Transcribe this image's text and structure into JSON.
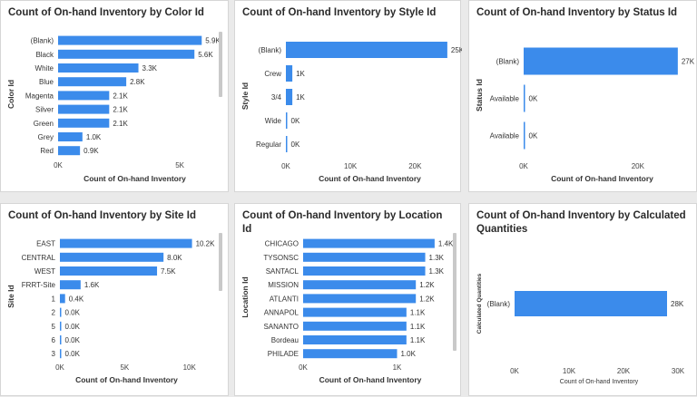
{
  "theme": {
    "bar_color": "#3b8beb",
    "background": "#eaeaea",
    "panel": "#ffffff"
  },
  "chart_data": [
    {
      "id": "color",
      "type": "bar",
      "orientation": "horizontal",
      "title": "Count of On-hand Inventory by Color Id",
      "xlabel": "Count of On-hand Inventory",
      "ylabel": "Color Id",
      "categories": [
        "(Blank)",
        "Black",
        "White",
        "Blue",
        "Magenta",
        "Silver",
        "Green",
        "Grey",
        "Red"
      ],
      "values": [
        5900,
        5600,
        3300,
        2800,
        2100,
        2100,
        2100,
        1000,
        900
      ],
      "labels": [
        "5.9K",
        "5.6K",
        "3.3K",
        "2.8K",
        "2.1K",
        "2.1K",
        "2.1K",
        "1.0K",
        "0.9K"
      ],
      "xticks": [
        0,
        5000
      ],
      "xtick_labels": [
        "0K",
        "5K"
      ],
      "xlim": [
        0,
        6300
      ],
      "scrollbar": true
    },
    {
      "id": "style",
      "type": "bar",
      "orientation": "horizontal",
      "title": "Count of On-hand Inventory by Style Id",
      "xlabel": "Count of On-hand Inventory",
      "ylabel": "Style Id",
      "categories": [
        "(Blank)",
        "Crew",
        "3/4",
        "Wide",
        "Regular"
      ],
      "values": [
        25000,
        1000,
        1000,
        0,
        0
      ],
      "labels": [
        "25K",
        "1K",
        "1K",
        "0K",
        "0K"
      ],
      "xticks": [
        0,
        10000,
        20000
      ],
      "xtick_labels": [
        "0K",
        "10K",
        "20K"
      ],
      "xlim": [
        0,
        26000
      ],
      "scrollbar": false
    },
    {
      "id": "status",
      "type": "bar",
      "orientation": "horizontal",
      "title": "Count of On-hand Inventory by Status Id",
      "xlabel": "Count of On-hand Inventory",
      "ylabel": "Status Id",
      "categories": [
        "(Blank)",
        "Available",
        "Available"
      ],
      "values": [
        27000,
        0,
        0
      ],
      "labels": [
        "27K",
        "0K",
        "0K"
      ],
      "xticks": [
        0,
        20000
      ],
      "xtick_labels": [
        "0K",
        "20K"
      ],
      "xlim": [
        0,
        27500
      ],
      "scrollbar": false
    },
    {
      "id": "site",
      "type": "bar",
      "orientation": "horizontal",
      "title": "Count of On-hand Inventory by Site Id",
      "xlabel": "Count of On-hand Inventory",
      "ylabel": "Site Id",
      "categories": [
        "EAST",
        "CENTRAL",
        "WEST",
        "FRRT-Site",
        "1",
        "2",
        "5",
        "6",
        "3"
      ],
      "values": [
        10200,
        8000,
        7500,
        1600,
        400,
        0,
        0,
        0,
        0
      ],
      "labels": [
        "10.2K",
        "8.0K",
        "7.5K",
        "1.6K",
        "0.4K",
        "0.0K",
        "0.0K",
        "0.0K",
        "0.0K"
      ],
      "xticks": [
        0,
        5000,
        10000
      ],
      "xtick_labels": [
        "0K",
        "5K",
        "10K"
      ],
      "xlim": [
        0,
        10300
      ],
      "scrollbar": true
    },
    {
      "id": "location",
      "type": "bar",
      "orientation": "horizontal",
      "title": "Count of On-hand Inventory by Location Id",
      "xlabel": "Count of On-hand Inventory",
      "ylabel": "Location Id",
      "categories": [
        "CHICAGO",
        "TYSONSC",
        "SANTACL",
        "MISSION",
        "ATLANTI",
        "ANNAPOL",
        "SANANTO",
        "Bordeau",
        "PHILADE"
      ],
      "values": [
        1400,
        1300,
        1300,
        1200,
        1200,
        1100,
        1100,
        1100,
        1000
      ],
      "labels": [
        "1.4K",
        "1.3K",
        "1.3K",
        "1.2K",
        "1.2K",
        "1.1K",
        "1.1K",
        "1.1K",
        "1.0K"
      ],
      "xticks": [
        0,
        1000
      ],
      "xtick_labels": [
        "0K",
        "1K"
      ],
      "xlim": [
        0,
        1430
      ],
      "scrollbar": true
    },
    {
      "id": "calc",
      "type": "bar",
      "orientation": "horizontal",
      "title": "Count of On-hand Inventory by Calculated Quantities",
      "xlabel": "Count of On-hand Inventory",
      "ylabel": "Calculated Quantities",
      "categories": [
        "(Blank)"
      ],
      "values": [
        28000
      ],
      "labels": [
        "28K"
      ],
      "xticks": [
        0,
        10000,
        20000,
        30000
      ],
      "xtick_labels": [
        "0K",
        "10K",
        "20K",
        "30K"
      ],
      "xlim": [
        0,
        31000
      ],
      "scrollbar": false
    }
  ]
}
